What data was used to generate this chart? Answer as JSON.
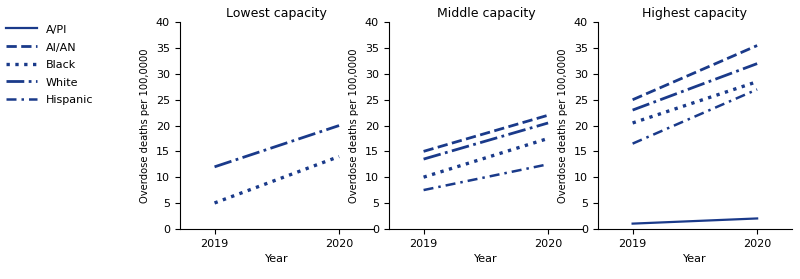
{
  "panels": [
    {
      "title": "Lowest capacity",
      "series": [
        {
          "name": "White",
          "2019": 12.0,
          "2020": 20.0
        },
        {
          "name": "Black",
          "2019": 5.0,
          "2020": 14.0
        }
      ]
    },
    {
      "title": "Middle capacity",
      "series": [
        {
          "name": "AI/AN",
          "2019": 15.0,
          "2020": 22.0
        },
        {
          "name": "White",
          "2019": 13.5,
          "2020": 20.5
        },
        {
          "name": "Black",
          "2019": 10.0,
          "2020": 17.5
        },
        {
          "name": "Hispanic",
          "2019": 7.5,
          "2020": 12.5
        }
      ]
    },
    {
      "title": "Highest capacity",
      "series": [
        {
          "name": "AI/AN",
          "2019": 25.0,
          "2020": 35.5
        },
        {
          "name": "White",
          "2019": 23.0,
          "2020": 32.0
        },
        {
          "name": "Black",
          "2019": 20.5,
          "2020": 28.5
        },
        {
          "name": "Hispanic",
          "2019": 16.5,
          "2020": 27.0
        },
        {
          "name": "A/PI",
          "2019": 1.0,
          "2020": 2.0
        }
      ]
    }
  ],
  "color": "#1a3a8a",
  "ylabel": "Overdose deaths per 100,0000",
  "xlabel": "Year",
  "ylim": [
    0,
    40
  ],
  "yticks": [
    0,
    5,
    10,
    15,
    20,
    25,
    30,
    35,
    40
  ],
  "xticks": [
    2019,
    2020
  ],
  "legend_order": [
    "A/PI",
    "AI/AN",
    "Black",
    "White",
    "Hispanic"
  ]
}
